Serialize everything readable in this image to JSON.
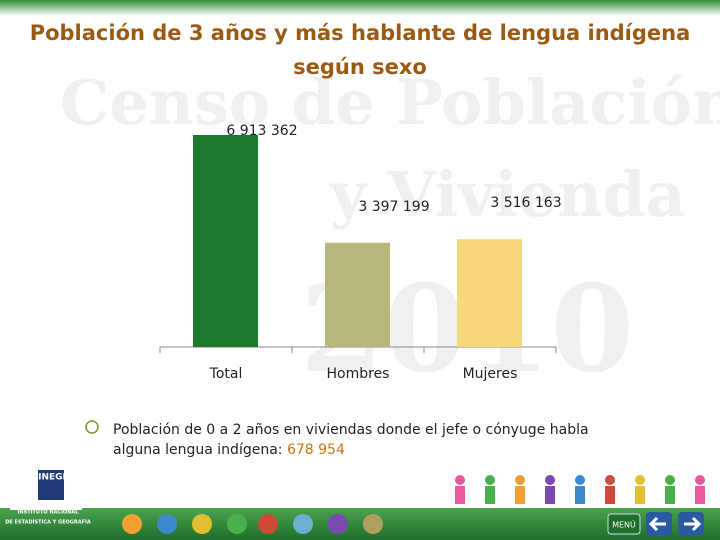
{
  "chart_data": {
    "type": "bar",
    "title": "Población de 3 años y más hablante de lengua indígena",
    "subtitle": "según sexo",
    "categories": [
      "Total",
      "Hombres",
      "Mujeres"
    ],
    "values": [
      6913362,
      3397199,
      3516163
    ],
    "value_labels": [
      "6 913 362",
      "3 397 199",
      "3 516 163"
    ],
    "colors": [
      "#1b7a2c",
      "#b7b77c",
      "#f8d67a"
    ]
  },
  "note": {
    "text": "Población de 0 a 2 años en viviendas donde el jefe o cónyuge habla alguna lengua indígena:",
    "value": "678 954"
  },
  "watermark": [
    "Censo de Población",
    "y Vivienda",
    "2010"
  ],
  "logo": {
    "name": "INEGI",
    "line1": "INSTITUTO NACIONAL",
    "line2": "DE ESTADÍSTICA Y GEOGRAFÍA"
  },
  "nav": {
    "menu": "MENÚ"
  }
}
